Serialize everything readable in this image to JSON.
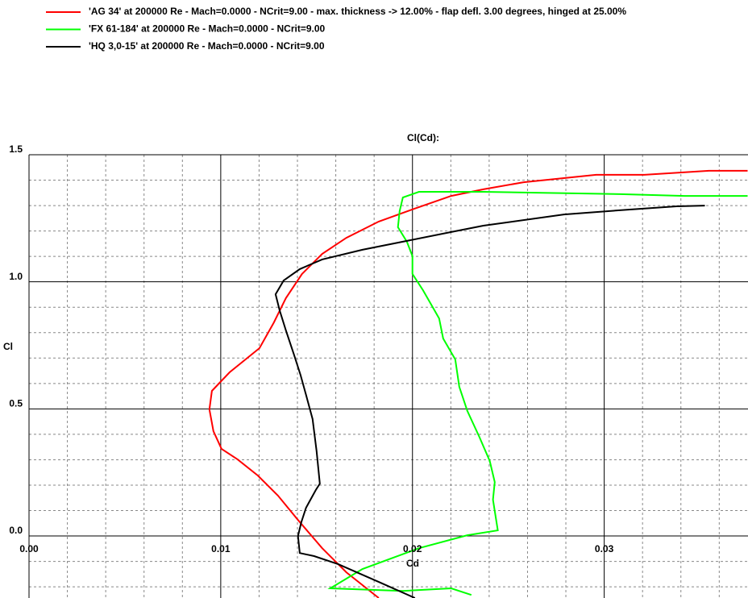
{
  "chart_data": {
    "type": "line",
    "title": "Cl(Cd):",
    "x_label": "Cd",
    "y_label": "Cl",
    "xlim": [
      0,
      0.0375
    ],
    "ylim": [
      -0.244,
      1.5
    ],
    "xticks": [
      {
        "value": 0,
        "label": "0.00"
      },
      {
        "value": 0.01,
        "label": "0.01"
      },
      {
        "value": 0.02,
        "label": "0.02"
      },
      {
        "value": 0.03,
        "label": "0.03"
      }
    ],
    "yticks": [
      {
        "value": 0,
        "label": "0.0"
      },
      {
        "value": 0.5,
        "label": "0.5"
      },
      {
        "value": 1,
        "label": "1.0"
      },
      {
        "value": 1.5,
        "label": "1.5"
      }
    ],
    "x_minor_ticks": [
      0.002,
      0.004,
      0.006,
      0.008,
      0.012,
      0.014,
      0.016,
      0.018,
      0.022,
      0.024,
      0.026,
      0.028,
      0.032,
      0.034,
      0.036
    ],
    "y_minor_ticks": [
      -0.2,
      -0.1,
      0.1,
      0.2,
      0.3,
      0.4,
      0.6,
      0.7,
      0.8,
      0.9,
      1.1,
      1.2,
      1.3,
      1.4
    ],
    "grid": true,
    "series": [
      {
        "name": "'AG 34' at 200000 Re - Mach=0.0000 - NCrit=9.00 - max. thickness -> 12.00% - flap defl. 3.00 degrees, hinged at 25.00%",
        "color": "#ff0000",
        "x": [
          0.01824,
          0.01655,
          0.01529,
          0.01403,
          0.01298,
          0.01193,
          0.01088,
          0.01004,
          0.00962,
          0.00941,
          0.00954,
          0.01046,
          0.01202,
          0.01277,
          0.0134,
          0.01424,
          0.01529,
          0.01655,
          0.01824,
          0.02,
          0.02202,
          0.0237,
          0.0258,
          0.02958,
          0.0321,
          0.03546,
          0.03748
        ],
        "values": [
          -0.244,
          -0.143,
          -0.048,
          0.063,
          0.159,
          0.238,
          0.301,
          0.343,
          0.412,
          0.498,
          0.571,
          0.644,
          0.739,
          0.84,
          0.936,
          1.031,
          1.11,
          1.173,
          1.237,
          1.285,
          1.338,
          1.364,
          1.392,
          1.421,
          1.421,
          1.437,
          1.437
        ]
      },
      {
        "name": "'FX 61-184' at 200000 Re - Mach=0.0000 - NCrit=9.00",
        "color": "#00ff00",
        "x": [
          0.02307,
          0.02202,
          0.0195,
          0.01571,
          0.01739,
          0.02034,
          0.02286,
          0.02445,
          0.0242,
          0.02429,
          0.02403,
          0.02349,
          0.02286,
          0.02244,
          0.02223,
          0.0216,
          0.02139,
          0.02055,
          0.02,
          0.02,
          0.01971,
          0.01924,
          0.01933,
          0.0195,
          0.02034,
          0.0237,
          0.03084,
          0.0342,
          0.03748
        ],
        "values": [
          -0.232,
          -0.206,
          -0.216,
          -0.206,
          -0.13,
          -0.048,
          0.003,
          0.022,
          0.143,
          0.212,
          0.295,
          0.39,
          0.492,
          0.587,
          0.695,
          0.777,
          0.856,
          0.967,
          1.031,
          1.101,
          1.158,
          1.215,
          1.278,
          1.332,
          1.354,
          1.354,
          1.345,
          1.338,
          1.338
        ]
      },
      {
        "name": "'HQ 3,0-15' at 200000 Re - Mach=0.0000 - NCrit=9.00",
        "color": "#000000",
        "x": [
          0.02013,
          0.01824,
          0.01613,
          0.01487,
          0.01412,
          0.01403,
          0.0142,
          0.01445,
          0.01496,
          0.01517,
          0.015,
          0.01479,
          0.01445,
          0.01416,
          0.01382,
          0.0134,
          0.01307,
          0.01286,
          0.01328,
          0.01412,
          0.01529,
          0.01739,
          0.0195,
          0.02202,
          0.0237,
          0.0279,
          0.03126,
          0.03378,
          0.03525
        ],
        "values": [
          -0.244,
          -0.181,
          -0.111,
          -0.079,
          -0.067,
          0,
          0.054,
          0.111,
          0.181,
          0.206,
          0.333,
          0.46,
          0.555,
          0.634,
          0.714,
          0.809,
          0.888,
          0.951,
          1.005,
          1.05,
          1.088,
          1.126,
          1.158,
          1.196,
          1.221,
          1.265,
          1.284,
          1.297,
          1.3
        ]
      }
    ]
  }
}
